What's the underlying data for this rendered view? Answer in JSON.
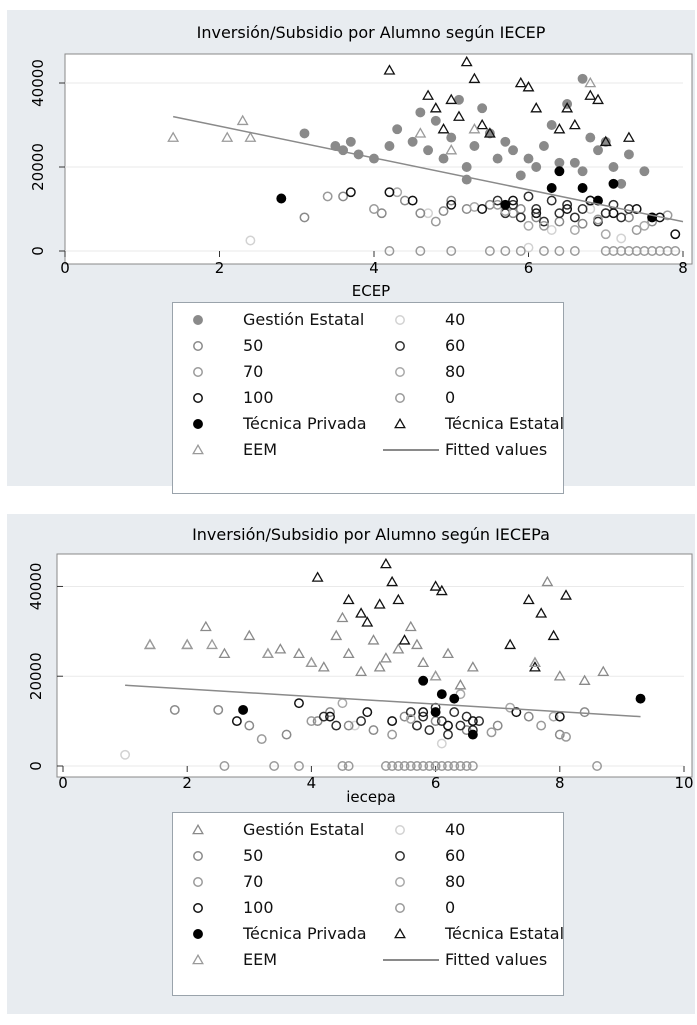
{
  "chart_data": [
    {
      "type": "scatter",
      "title": "Inversión/Subsidio por Alumno según IECEP",
      "xlabel": "ECEP",
      "ylabel": "",
      "xlim": [
        0,
        8
      ],
      "ylim": [
        0,
        45000
      ],
      "xticks": [
        0,
        2,
        4,
        6,
        8
      ],
      "yticks": [
        0,
        20000,
        40000
      ],
      "xtick_labels": [
        "0",
        "2",
        "4",
        "6",
        "8"
      ],
      "ytick_labels": [
        "0",
        "20000",
        "40000"
      ],
      "grid": true,
      "legend_position": "bottom",
      "fitted_line": {
        "x": [
          1.4,
          8
        ],
        "y": [
          32000,
          7000
        ]
      },
      "series": [
        {
          "name": "Gestión Estatal",
          "marker": "circle",
          "fill": "#8a8a8a",
          "stroke": "#8a8a8a",
          "x": [
            3.1,
            3.5,
            3.6,
            3.7,
            3.8,
            4.0,
            4.2,
            4.3,
            4.5,
            4.6,
            4.7,
            4.8,
            4.9,
            5.0,
            5.1,
            5.2,
            5.3,
            5.4,
            5.5,
            5.6,
            5.7,
            5.8,
            5.9,
            6.0,
            6.1,
            6.2,
            6.3,
            6.4,
            6.5,
            6.6,
            6.7,
            6.8,
            6.9,
            7.0,
            7.1,
            7.2,
            7.3,
            7.5,
            6.7,
            5.2
          ],
          "y": [
            28000,
            25000,
            24000,
            26000,
            23000,
            22000,
            25000,
            29000,
            26000,
            33000,
            24000,
            31000,
            22000,
            27000,
            36000,
            20000,
            25000,
            34000,
            28000,
            22000,
            26000,
            24000,
            18000,
            22000,
            20000,
            25000,
            30000,
            21000,
            35000,
            21000,
            41000,
            27000,
            24000,
            26000,
            20000,
            16000,
            23000,
            19000,
            19000,
            17000
          ]
        },
        {
          "name": "40",
          "marker": "circle",
          "fill": "none",
          "stroke": "#d2d2d2",
          "x": [
            2.4,
            4.7,
            6.0,
            6.3,
            6.8,
            7.2
          ],
          "y": [
            2500,
            9000,
            800,
            5000,
            10000,
            3000
          ]
        },
        {
          "name": "50",
          "marker": "circle",
          "fill": "none",
          "stroke": "#8a8a8a",
          "x": [
            3.1,
            3.6,
            4.1,
            4.4,
            4.6,
            4.9,
            5.2,
            5.5,
            5.8,
            6.1,
            6.4,
            6.7,
            7.0,
            7.3,
            7.6,
            5.0,
            5.9
          ],
          "y": [
            8000,
            13000,
            9000,
            12000,
            9000,
            9500,
            10000,
            11000,
            9000,
            8000,
            7000,
            6500,
            9000,
            8000,
            7000,
            12000,
            10000
          ]
        },
        {
          "name": "60",
          "marker": "circle",
          "fill": "none",
          "stroke": "#303030",
          "x": [
            5.6,
            5.7,
            5.8,
            5.9,
            6.0,
            6.1,
            6.2,
            6.3,
            6.4,
            6.5,
            6.6,
            6.7,
            6.8,
            6.9,
            7.0,
            7.1,
            7.2,
            7.3
          ],
          "y": [
            12000,
            9000,
            11000,
            8000,
            13000,
            10000,
            7000,
            12000,
            9000,
            11000,
            8000,
            10000,
            12000,
            7000,
            9000,
            11000,
            8000,
            10000
          ]
        },
        {
          "name": "70",
          "marker": "circle",
          "fill": "none",
          "stroke": "#9a9a9a",
          "x": [
            3.4,
            4.0,
            4.8,
            5.6,
            6.2,
            6.9,
            7.4,
            7.8
          ],
          "y": [
            13000,
            10000,
            7000,
            11000,
            6000,
            7500,
            5000,
            8500
          ]
        },
        {
          "name": "80",
          "marker": "circle",
          "fill": "none",
          "stroke": "#a8a8a8",
          "x": [
            4.3,
            5.3,
            5.7,
            6.0,
            6.6,
            7.0,
            7.5
          ],
          "y": [
            14000,
            10500,
            9500,
            6000,
            5000,
            4000,
            6000
          ]
        },
        {
          "name": "100",
          "marker": "circle",
          "fill": "none",
          "stroke": "#111111",
          "x": [
            3.7,
            4.2,
            4.5,
            5.0,
            5.4,
            5.8,
            6.1,
            6.5,
            6.8,
            7.1,
            7.4,
            7.7,
            7.9
          ],
          "y": [
            14000,
            14000,
            12000,
            11000,
            10000,
            12000,
            9000,
            10000,
            12000,
            9000,
            10000,
            8000,
            4000
          ]
        },
        {
          "name": "0",
          "marker": "circle",
          "fill": "none",
          "stroke": "#9a9a9a",
          "x": [
            4.2,
            4.6,
            5.0,
            5.5,
            5.7,
            5.9,
            6.2,
            6.4,
            6.6,
            7.0,
            7.1,
            7.2,
            7.3,
            7.4,
            7.5,
            7.6,
            7.7,
            7.8,
            7.9
          ],
          "y": [
            0,
            0,
            0,
            0,
            0,
            0,
            0,
            0,
            0,
            0,
            0,
            0,
            0,
            0,
            0,
            0,
            0,
            0,
            0
          ]
        },
        {
          "name": "Técnica Privada",
          "marker": "circle",
          "fill": "#000000",
          "stroke": "#000000",
          "x": [
            2.8,
            5.7,
            6.3,
            6.4,
            6.7,
            6.9,
            7.1,
            7.6
          ],
          "y": [
            12500,
            11000,
            15000,
            19000,
            15000,
            12000,
            16000,
            8000
          ]
        },
        {
          "name": "Técnica Estatal",
          "marker": "triangle",
          "fill": "none",
          "stroke": "#111111",
          "x": [
            4.2,
            4.7,
            4.8,
            4.9,
            5.0,
            5.1,
            5.2,
            5.3,
            5.4,
            5.5,
            5.9,
            6.0,
            6.1,
            6.4,
            6.5,
            6.6,
            6.8,
            6.9,
            7.0,
            7.3
          ],
          "y": [
            43000,
            37000,
            34000,
            29000,
            36000,
            32000,
            45000,
            41000,
            30000,
            28000,
            40000,
            39000,
            34000,
            29000,
            34000,
            30000,
            37000,
            36000,
            26000,
            27000
          ]
        },
        {
          "name": "EEM",
          "marker": "triangle",
          "fill": "none",
          "stroke": "#9a9a9a",
          "x": [
            1.4,
            2.1,
            2.3,
            2.4,
            4.6,
            5.3,
            5.0,
            6.8
          ],
          "y": [
            27000,
            27000,
            31000,
            27000,
            28000,
            29000,
            24000,
            40000
          ]
        }
      ]
    },
    {
      "type": "scatter",
      "title": "Inversión/Subsidio por Alumno según IECEPa",
      "xlabel": "iecepa",
      "ylabel": "",
      "xlim": [
        0,
        10
      ],
      "ylim": [
        0,
        45000
      ],
      "xticks": [
        0,
        2,
        4,
        6,
        8,
        10
      ],
      "yticks": [
        0,
        20000,
        40000
      ],
      "xtick_labels": [
        "0",
        "2",
        "4",
        "6",
        "8",
        "10"
      ],
      "ytick_labels": [
        "0",
        "20000",
        "40000"
      ],
      "grid": true,
      "legend_position": "bottom",
      "fitted_line": {
        "x": [
          1.0,
          9.3
        ],
        "y": [
          18000,
          11000
        ]
      },
      "series": [
        {
          "name": "Gestión Estatal",
          "marker": "triangle",
          "fill": "none",
          "stroke": "#8a8a8a",
          "x": [
            1.4,
            2.0,
            2.3,
            2.6,
            3.0,
            3.3,
            3.5,
            3.8,
            4.0,
            4.2,
            4.4,
            4.6,
            4.8,
            5.0,
            5.2,
            5.4,
            5.6,
            5.8,
            6.0,
            6.2,
            6.4,
            6.6,
            7.6,
            7.8,
            8.0,
            8.4,
            8.7,
            4.5,
            5.1,
            5.7
          ],
          "y": [
            27000,
            27000,
            31000,
            25000,
            29000,
            25000,
            26000,
            25000,
            23000,
            22000,
            29000,
            25000,
            21000,
            28000,
            24000,
            26000,
            31000,
            23000,
            20000,
            25000,
            18000,
            22000,
            23000,
            41000,
            20000,
            19000,
            21000,
            33000,
            22000,
            27000
          ]
        },
        {
          "name": "40",
          "marker": "circle",
          "fill": "none",
          "stroke": "#d2d2d2",
          "x": [
            1.0,
            4.7,
            5.3,
            6.1
          ],
          "y": [
            2500,
            9000,
            10000,
            5000
          ]
        },
        {
          "name": "50",
          "marker": "circle",
          "fill": "none",
          "stroke": "#8a8a8a",
          "x": [
            1.8,
            2.5,
            3.0,
            3.6,
            4.1,
            4.6,
            5.0,
            5.5,
            6.0,
            6.5,
            7.0,
            7.5,
            8.0,
            8.4,
            4.3,
            5.7
          ],
          "y": [
            12500,
            12500,
            9000,
            7000,
            10000,
            9000,
            8000,
            11000,
            10000,
            8000,
            9000,
            11000,
            7000,
            12000,
            12000,
            9000
          ]
        },
        {
          "name": "60",
          "marker": "circle",
          "fill": "none",
          "stroke": "#303030",
          "x": [
            5.6,
            5.7,
            5.8,
            5.9,
            6.0,
            6.1,
            6.2,
            6.3,
            6.4,
            6.5,
            6.6,
            6.7,
            4.2,
            4.4,
            4.8
          ],
          "y": [
            12000,
            9000,
            11000,
            8000,
            13000,
            10000,
            7000,
            12000,
            9000,
            11000,
            8000,
            10000,
            11000,
            9000,
            10000
          ]
        },
        {
          "name": "70",
          "marker": "circle",
          "fill": "none",
          "stroke": "#9a9a9a",
          "x": [
            3.2,
            4.0,
            5.3,
            6.9,
            7.7,
            8.1
          ],
          "y": [
            6000,
            10000,
            7000,
            7500,
            9000,
            6500
          ]
        },
        {
          "name": "80",
          "marker": "circle",
          "fill": "none",
          "stroke": "#a8a8a8",
          "x": [
            4.5,
            5.6,
            6.4,
            7.2,
            7.9
          ],
          "y": [
            14000,
            10500,
            16000,
            13000,
            11000
          ]
        },
        {
          "name": "100",
          "marker": "circle",
          "fill": "none",
          "stroke": "#111111",
          "x": [
            2.8,
            3.8,
            4.3,
            4.9,
            5.3,
            5.8,
            6.2,
            6.6,
            7.3,
            8.0
          ],
          "y": [
            10000,
            14000,
            11000,
            12000,
            10000,
            12000,
            9000,
            10000,
            12000,
            11000
          ]
        },
        {
          "name": "0",
          "marker": "circle",
          "fill": "none",
          "stroke": "#9a9a9a",
          "x": [
            2.6,
            3.4,
            3.8,
            4.5,
            4.6,
            5.2,
            5.3,
            5.4,
            5.5,
            5.6,
            5.7,
            5.8,
            5.9,
            6.0,
            6.1,
            6.2,
            6.3,
            6.4,
            6.5,
            6.6,
            8.6
          ],
          "y": [
            0,
            0,
            0,
            0,
            0,
            0,
            0,
            0,
            0,
            0,
            0,
            0,
            0,
            0,
            0,
            0,
            0,
            0,
            0,
            0,
            0
          ]
        },
        {
          "name": "Técnica Privada",
          "marker": "circle",
          "fill": "#000000",
          "stroke": "#000000",
          "x": [
            2.9,
            5.8,
            6.0,
            6.1,
            6.3,
            6.6,
            9.3
          ],
          "y": [
            12500,
            19000,
            12000,
            16000,
            15000,
            7000,
            15000
          ]
        },
        {
          "name": "Técnica Estatal",
          "marker": "triangle",
          "fill": "none",
          "stroke": "#111111",
          "x": [
            4.1,
            4.6,
            4.8,
            4.9,
            5.1,
            5.2,
            5.3,
            5.4,
            5.5,
            6.0,
            6.1,
            7.5,
            7.7,
            7.9,
            8.1,
            7.2,
            7.6
          ],
          "y": [
            42000,
            37000,
            34000,
            32000,
            36000,
            45000,
            41000,
            37000,
            28000,
            40000,
            39000,
            37000,
            34000,
            29000,
            38000,
            27000,
            22000
          ]
        },
        {
          "name": "EEM",
          "marker": "triangle",
          "fill": "none",
          "stroke": "#9a9a9a",
          "x": [
            1.4,
            2.0,
            2.4,
            3.3,
            4.0,
            6.0,
            7.6
          ],
          "y": [
            27000,
            27000,
            27000,
            25000,
            23000,
            20000,
            23000
          ]
        }
      ]
    }
  ],
  "legend": [
    {
      "label": "Gestión Estatal",
      "key": "circle",
      "fill": "#8a8a8a",
      "stroke": "#8a8a8a"
    },
    {
      "label": "40",
      "key": "circle",
      "fill": "none",
      "stroke": "#d2d2d2"
    },
    {
      "label": "50",
      "key": "circle",
      "fill": "none",
      "stroke": "#8a8a8a"
    },
    {
      "label": "60",
      "key": "circle",
      "fill": "none",
      "stroke": "#303030"
    },
    {
      "label": "70",
      "key": "circle",
      "fill": "none",
      "stroke": "#9a9a9a"
    },
    {
      "label": "80",
      "key": "circle",
      "fill": "none",
      "stroke": "#a8a8a8"
    },
    {
      "label": "100",
      "key": "circle",
      "fill": "none",
      "stroke": "#111111"
    },
    {
      "label": "0",
      "key": "circle",
      "fill": "none",
      "stroke": "#9a9a9a"
    },
    {
      "label": "Técnica Privada",
      "key": "circle",
      "fill": "#000000",
      "stroke": "#000000"
    },
    {
      "label": "Técnica Estatal",
      "key": "triangle",
      "fill": "none",
      "stroke": "#111111"
    },
    {
      "label": "EEM",
      "key": "triangle",
      "fill": "none",
      "stroke": "#9a9a9a"
    },
    {
      "label": "Fitted values",
      "key": "line",
      "fill": "none",
      "stroke": "#8a8a8a"
    }
  ],
  "legend2": [
    {
      "label": "Gestión Estatal",
      "key": "triangle",
      "fill": "none",
      "stroke": "#8a8a8a"
    },
    {
      "label": "40",
      "key": "circle",
      "fill": "none",
      "stroke": "#d2d2d2"
    },
    {
      "label": "50",
      "key": "circle",
      "fill": "none",
      "stroke": "#8a8a8a"
    },
    {
      "label": "60",
      "key": "circle",
      "fill": "none",
      "stroke": "#303030"
    },
    {
      "label": "70",
      "key": "circle",
      "fill": "none",
      "stroke": "#9a9a9a"
    },
    {
      "label": "80",
      "key": "circle",
      "fill": "none",
      "stroke": "#a8a8a8"
    },
    {
      "label": "100",
      "key": "circle",
      "fill": "none",
      "stroke": "#111111"
    },
    {
      "label": "0",
      "key": "circle",
      "fill": "none",
      "stroke": "#9a9a9a"
    },
    {
      "label": "Técnica Privada",
      "key": "circle",
      "fill": "#000000",
      "stroke": "#000000"
    },
    {
      "label": "Técnica Estatal",
      "key": "triangle",
      "fill": "none",
      "stroke": "#111111"
    },
    {
      "label": "EEM",
      "key": "triangle",
      "fill": "none",
      "stroke": "#9a9a9a"
    },
    {
      "label": "Fitted values",
      "key": "line",
      "fill": "none",
      "stroke": "#8a8a8a"
    }
  ]
}
